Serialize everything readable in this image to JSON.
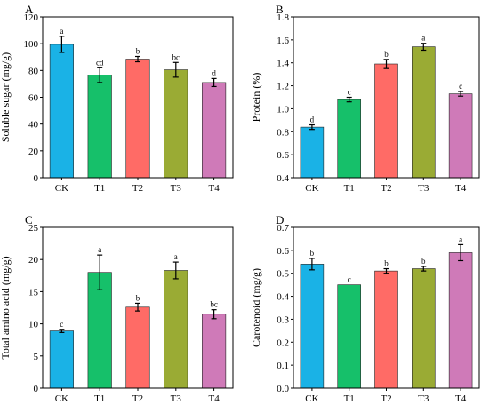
{
  "colors": [
    "#1ab2e6",
    "#16c06a",
    "#ff6b66",
    "#9aab34",
    "#cf7ab8"
  ],
  "chart_data": [
    {
      "panel": "A",
      "type": "bar",
      "ylabel": "Soluble sugar (mg/g)",
      "categories": [
        "CK",
        "T1",
        "T2",
        "T3",
        "T4"
      ],
      "values": [
        99.5,
        76.5,
        88.5,
        80.5,
        71
      ],
      "errors": [
        6,
        5.5,
        2,
        5.5,
        3
      ],
      "letters": [
        "a",
        "cd",
        "b",
        "bc",
        "d"
      ],
      "ylim": [
        0,
        120
      ],
      "yticks": [
        0,
        20,
        40,
        60,
        80,
        100,
        120
      ],
      "ytick_labels": [
        "0",
        "20",
        "40",
        "60",
        "80",
        "100",
        "120"
      ]
    },
    {
      "panel": "B",
      "type": "bar",
      "ylabel": "Protein (%)",
      "categories": [
        "CK",
        "T1",
        "T2",
        "T3",
        "T4"
      ],
      "values": [
        0.84,
        1.08,
        1.39,
        1.54,
        1.13
      ],
      "errors": [
        0.02,
        0.02,
        0.04,
        0.03,
        0.02
      ],
      "letters": [
        "d",
        "c",
        "b",
        "a",
        "c"
      ],
      "ylim": [
        0.4,
        1.8
      ],
      "yticks": [
        0.4,
        0.6,
        0.8,
        1.0,
        1.2,
        1.4,
        1.6,
        1.8
      ],
      "ytick_labels": [
        "0.4",
        "0.6",
        "0.8",
        "1.0",
        "1.2",
        "1.4",
        "1.6",
        "1.8"
      ]
    },
    {
      "panel": "C",
      "type": "bar",
      "ylabel": "Total amino acid (mg/g)",
      "categories": [
        "CK",
        "T1",
        "T2",
        "T3",
        "T4"
      ],
      "values": [
        8.9,
        18,
        12.6,
        18.3,
        11.5
      ],
      "errors": [
        0.25,
        2.7,
        0.6,
        1.3,
        0.7
      ],
      "letters": [
        "c",
        "a",
        "b",
        "a",
        "bc"
      ],
      "ylim": [
        0,
        25
      ],
      "yticks": [
        0,
        5,
        10,
        15,
        20,
        25
      ],
      "ytick_labels": [
        "0",
        "5",
        "10",
        "15",
        "20",
        "25"
      ]
    },
    {
      "panel": "D",
      "type": "bar",
      "ylabel": "Carotenoid (mg/g)",
      "categories": [
        "CK",
        "T1",
        "T2",
        "T3",
        "T4"
      ],
      "values": [
        0.54,
        0.45,
        0.51,
        0.52,
        0.59
      ],
      "errors": [
        0.025,
        0,
        0.01,
        0.01,
        0.035
      ],
      "letters": [
        "b",
        "c",
        "b",
        "b",
        "a"
      ],
      "ylim": [
        0,
        0.7
      ],
      "yticks": [
        0,
        0.1,
        0.2,
        0.3,
        0.4,
        0.5,
        0.6,
        0.7
      ],
      "ytick_labels": [
        "0.0",
        "0.1",
        "0.2",
        "0.3",
        "0.4",
        "0.5",
        "0.6",
        "0.7"
      ]
    }
  ]
}
